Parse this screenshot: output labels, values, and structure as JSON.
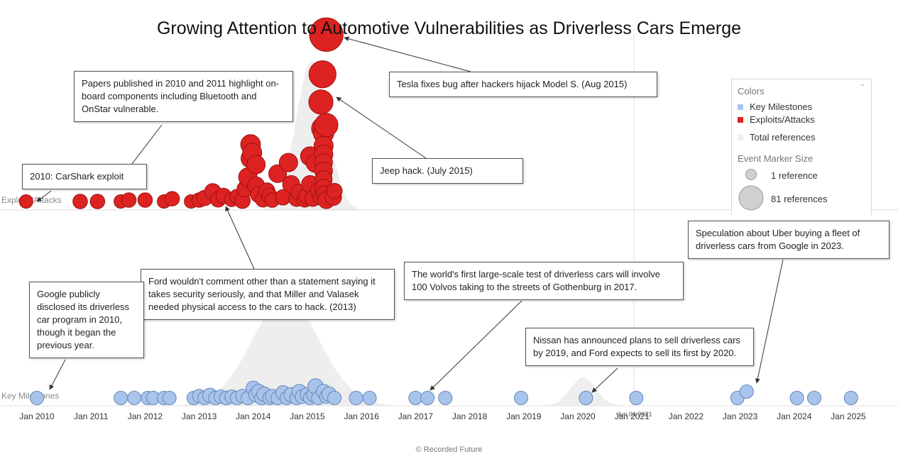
{
  "chart_data": {
    "type": "scatter",
    "title": "Growing Attention to Automotive Vulnerabilities as Driverless Cars Emerge",
    "x_axis": {
      "ticks": [
        "Jan 2010",
        "Jan 2011",
        "Jan 2012",
        "Jan 2013",
        "Jan 2014",
        "Jan 2015",
        "Jan 2016",
        "Jan 2017",
        "Jan 2018",
        "Jan 2019",
        "Jan 2020",
        "Jan 2021",
        "Jan 2022",
        "Jan 2023",
        "Jan 2024",
        "Jan 2025"
      ],
      "range": [
        2009.7,
        2025.45
      ],
      "current_date_label": "Jun 04 2021"
    },
    "lanes": [
      "Exploits/Attacks",
      "Key Milestones"
    ],
    "colors": {
      "exploits": "#dd2222",
      "exploits_stroke": "#9e1111",
      "milestones": "#a8c4ec",
      "milestones_stroke": "#6688b8",
      "total_references": "#eeeeee"
    },
    "series": [
      {
        "name": "Exploits/Attacks",
        "points": [
          {
            "x": 2009.8,
            "level": 0,
            "refs": 3
          },
          {
            "x": 2010.8,
            "level": 0,
            "refs": 4
          },
          {
            "x": 2011.12,
            "level": 0,
            "refs": 4
          },
          {
            "x": 2011.55,
            "level": 0,
            "refs": 3
          },
          {
            "x": 2011.7,
            "level": 0.2,
            "refs": 4
          },
          {
            "x": 2012.0,
            "level": 0.2,
            "refs": 4
          },
          {
            "x": 2012.35,
            "level": 0,
            "refs": 3
          },
          {
            "x": 2012.5,
            "level": 0.4,
            "refs": 4
          },
          {
            "x": 2012.85,
            "level": 0,
            "refs": 3
          },
          {
            "x": 2013.0,
            "level": 0.2,
            "refs": 4
          },
          {
            "x": 2013.1,
            "level": 0.5,
            "refs": 5
          },
          {
            "x": 2013.25,
            "level": 1.4,
            "refs": 6
          },
          {
            "x": 2013.35,
            "level": 0.3,
            "refs": 5
          },
          {
            "x": 2013.45,
            "level": 0.8,
            "refs": 5
          },
          {
            "x": 2013.6,
            "level": 0.3,
            "refs": 4
          },
          {
            "x": 2013.7,
            "level": 0.7,
            "refs": 4
          },
          {
            "x": 2013.8,
            "level": 0.1,
            "refs": 5
          },
          {
            "x": 2013.85,
            "level": 1.8,
            "refs": 6
          },
          {
            "x": 2013.9,
            "level": 3.5,
            "refs": 9
          },
          {
            "x": 2013.95,
            "level": 8.2,
            "refs": 11
          },
          {
            "x": 2013.95,
            "level": 6.2,
            "refs": 10
          },
          {
            "x": 2013.98,
            "level": 7.0,
            "refs": 10
          },
          {
            "x": 2014.05,
            "level": 5.3,
            "refs": 9
          },
          {
            "x": 2014.05,
            "level": 2.3,
            "refs": 7
          },
          {
            "x": 2014.1,
            "level": 1.0,
            "refs": 6
          },
          {
            "x": 2014.18,
            "level": 0.3,
            "refs": 5
          },
          {
            "x": 2014.25,
            "level": 1.5,
            "refs": 6
          },
          {
            "x": 2014.3,
            "level": 0.8,
            "refs": 5
          },
          {
            "x": 2014.35,
            "level": 0.2,
            "refs": 4
          },
          {
            "x": 2014.45,
            "level": 4.0,
            "refs": 8
          },
          {
            "x": 2014.55,
            "level": 0.6,
            "refs": 5
          },
          {
            "x": 2014.65,
            "level": 5.6,
            "refs": 9
          },
          {
            "x": 2014.7,
            "level": 2.5,
            "refs": 7
          },
          {
            "x": 2014.8,
            "level": 0.4,
            "refs": 5
          },
          {
            "x": 2014.85,
            "level": 1.3,
            "refs": 6
          },
          {
            "x": 2014.95,
            "level": 0.3,
            "refs": 5
          },
          {
            "x": 2014.98,
            "level": 0.8,
            "refs": 5
          },
          {
            "x": 2015.05,
            "level": 6.5,
            "refs": 10
          },
          {
            "x": 2015.05,
            "level": 2.5,
            "refs": 7
          },
          {
            "x": 2015.1,
            "level": 0.4,
            "refs": 5
          },
          {
            "x": 2015.15,
            "level": 5.5,
            "refs": 9
          },
          {
            "x": 2015.2,
            "level": 1.5,
            "refs": 6
          },
          {
            "x": 2015.25,
            "level": 0.6,
            "refs": 5
          },
          {
            "x": 2015.28,
            "level": 10.5,
            "refs": 15
          },
          {
            "x": 2015.3,
            "level": 9.8,
            "refs": 12
          },
          {
            "x": 2015.3,
            "level": 8.0,
            "refs": 10
          },
          {
            "x": 2015.3,
            "level": 6.8,
            "refs": 9
          },
          {
            "x": 2015.3,
            "level": 5.6,
            "refs": 8
          },
          {
            "x": 2015.3,
            "level": 4.4,
            "refs": 8
          },
          {
            "x": 2015.3,
            "level": 3.2,
            "refs": 7
          },
          {
            "x": 2015.3,
            "level": 2.0,
            "refs": 7
          },
          {
            "x": 2015.32,
            "level": 1.0,
            "refs": 7
          },
          {
            "x": 2015.35,
            "level": 0.2,
            "refs": 7
          },
          {
            "x": 2015.25,
            "level": 14.3,
            "refs": 20
          },
          {
            "x": 2015.35,
            "level": 11.0,
            "refs": 18
          },
          {
            "x": 2015.28,
            "level": 18.3,
            "refs": 27
          },
          {
            "x": 2015.35,
            "level": 24.0,
            "refs": 47
          },
          {
            "x": 2015.48,
            "level": 0.6,
            "refs": 6
          },
          {
            "x": 2015.5,
            "level": 1.5,
            "refs": 5
          }
        ]
      },
      {
        "name": "Key Milestones",
        "points": [
          {
            "x": 2010.0,
            "level": 0,
            "refs": 3
          },
          {
            "x": 2011.55,
            "level": 0,
            "refs": 3
          },
          {
            "x": 2011.8,
            "level": 0,
            "refs": 3
          },
          {
            "x": 2012.05,
            "level": 0,
            "refs": 3
          },
          {
            "x": 2012.15,
            "level": 0,
            "refs": 3
          },
          {
            "x": 2012.35,
            "level": 0,
            "refs": 3
          },
          {
            "x": 2012.45,
            "level": 0,
            "refs": 3
          },
          {
            "x": 2012.9,
            "level": 0,
            "refs": 3
          },
          {
            "x": 2013.0,
            "level": 0.3,
            "refs": 3
          },
          {
            "x": 2013.1,
            "level": 0,
            "refs": 3
          },
          {
            "x": 2013.2,
            "level": 0.4,
            "refs": 4
          },
          {
            "x": 2013.3,
            "level": 0,
            "refs": 3
          },
          {
            "x": 2013.4,
            "level": 0.2,
            "refs": 3
          },
          {
            "x": 2013.5,
            "level": 0,
            "refs": 3
          },
          {
            "x": 2013.6,
            "level": 0.2,
            "refs": 3
          },
          {
            "x": 2013.7,
            "level": 0,
            "refs": 3
          },
          {
            "x": 2013.8,
            "level": 0.3,
            "refs": 3
          },
          {
            "x": 2013.9,
            "level": 0,
            "refs": 3
          },
          {
            "x": 2014.0,
            "level": 1.5,
            "refs": 4
          },
          {
            "x": 2014.05,
            "level": 0.5,
            "refs": 4
          },
          {
            "x": 2014.1,
            "level": 1.0,
            "refs": 4
          },
          {
            "x": 2014.15,
            "level": 0,
            "refs": 3
          },
          {
            "x": 2014.2,
            "level": 0.6,
            "refs": 4
          },
          {
            "x": 2014.3,
            "level": 0,
            "refs": 3
          },
          {
            "x": 2014.35,
            "level": 0.3,
            "refs": 3
          },
          {
            "x": 2014.45,
            "level": 0,
            "refs": 3
          },
          {
            "x": 2014.55,
            "level": 0.8,
            "refs": 4
          },
          {
            "x": 2014.62,
            "level": 0,
            "refs": 3
          },
          {
            "x": 2014.7,
            "level": 0.5,
            "refs": 4
          },
          {
            "x": 2014.8,
            "level": 0,
            "refs": 3
          },
          {
            "x": 2014.85,
            "level": 1.0,
            "refs": 4
          },
          {
            "x": 2014.9,
            "level": 0.2,
            "refs": 3
          },
          {
            "x": 2015.0,
            "level": 0.5,
            "refs": 4
          },
          {
            "x": 2015.05,
            "level": 0,
            "refs": 3
          },
          {
            "x": 2015.12,
            "level": 0.5,
            "refs": 4
          },
          {
            "x": 2015.15,
            "level": 1.8,
            "refs": 5
          },
          {
            "x": 2015.2,
            "level": 0,
            "refs": 3
          },
          {
            "x": 2015.3,
            "level": 1.0,
            "refs": 4
          },
          {
            "x": 2015.35,
            "level": 0.2,
            "refs": 3
          },
          {
            "x": 2015.4,
            "level": 0.6,
            "refs": 4
          },
          {
            "x": 2015.5,
            "level": 0,
            "refs": 3
          },
          {
            "x": 2015.9,
            "level": 0,
            "refs": 3
          },
          {
            "x": 2016.15,
            "level": 0,
            "refs": 3
          },
          {
            "x": 2017.0,
            "level": 0,
            "refs": 3
          },
          {
            "x": 2017.22,
            "level": 0,
            "refs": 3
          },
          {
            "x": 2017.55,
            "level": 0,
            "refs": 3
          },
          {
            "x": 2018.95,
            "level": 0,
            "refs": 3
          },
          {
            "x": 2020.15,
            "level": 0,
            "refs": 3
          },
          {
            "x": 2021.08,
            "level": 0,
            "refs": 3
          },
          {
            "x": 2022.95,
            "level": 0,
            "refs": 3
          },
          {
            "x": 2023.12,
            "level": 1.0,
            "refs": 3
          },
          {
            "x": 2024.05,
            "level": 0,
            "refs": 3
          },
          {
            "x": 2024.37,
            "level": 0,
            "refs": 3
          },
          {
            "x": 2025.05,
            "level": 0,
            "refs": 3
          }
        ]
      }
    ],
    "legend": {
      "colors_title": "Colors",
      "items": [
        "Key Milestones",
        "Exploits/Attacks",
        "Total references"
      ],
      "size_title": "Event Marker Size",
      "size_items": [
        "1 reference",
        "81 references"
      ],
      "placement": "right"
    },
    "annotations": [
      {
        "text": "Tesla fixes bug after hackers hijack Model S.  (Aug 2015)"
      },
      {
        "text": "Papers published in 2010 and 2011 highlight on-board components including Bluetooth and OnStar vulnerable."
      },
      {
        "text": "2010: CarShark exploit"
      },
      {
        "text": "Jeep hack. (July 2015)"
      },
      {
        "text": "Speculation about Uber buying a fleet of driverless cars from Google in 2023."
      },
      {
        "text": "Ford wouldn't comment other than a statement saying it takes security seriously, and that Miller and Valasek needed physical access to the cars to hack.  (2013)"
      },
      {
        "text": "The world's first large-scale test of driverless cars will involve 100 Volvos taking to the streets of Gothenburg in 2017."
      },
      {
        "text": "Google publicly disclosed its driverless car program in 2010, though it began the previous year."
      },
      {
        "text": "Nissan has announced plans to sell driverless cars by 2019, and Ford expects to sell its first by 2020."
      }
    ]
  },
  "footer": {
    "credit": "© Recorded Future"
  }
}
